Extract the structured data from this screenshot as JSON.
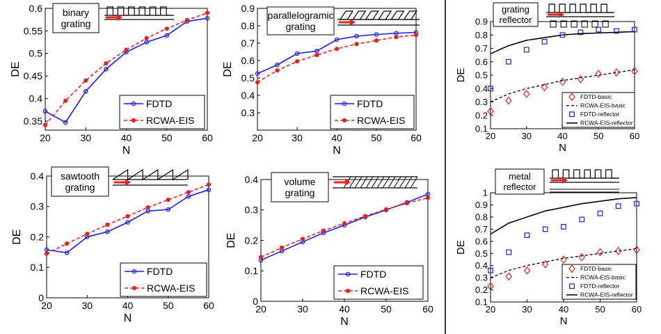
{
  "colors": {
    "fdtd": "#1a1aff",
    "rcwa": "#e8231f",
    "axis": "#000000",
    "schematic_arrow": "#e8231f"
  },
  "chart_data": [
    {
      "type": "line",
      "title": "binary\ngrating",
      "xlabel": "N",
      "ylabel": "DE",
      "xlim": [
        20,
        60
      ],
      "ylim": [
        0.33,
        0.6
      ],
      "xticks": [
        20,
        30,
        40,
        50,
        60
      ],
      "yticks": [
        0.35,
        0.4,
        0.45,
        0.5,
        0.55,
        0.6
      ],
      "ytick_labels": [
        "0.35",
        "0.4",
        "0.45",
        "0.5",
        "0.55",
        "0.6"
      ],
      "legend_position": "bottom-right",
      "schematic": "binary",
      "x": [
        20,
        25,
        30,
        35,
        40,
        45,
        50,
        55,
        60
      ],
      "series": [
        {
          "name": "FDTD",
          "style": "line-circle",
          "color": "#1a1aff",
          "values": [
            0.372,
            0.347,
            0.416,
            0.465,
            0.503,
            0.525,
            0.54,
            0.571,
            0.578
          ]
        },
        {
          "name": "RCWA-EIS",
          "style": "dashed-dot",
          "color": "#e8231f",
          "values": [
            0.341,
            0.395,
            0.44,
            0.478,
            0.508,
            0.534,
            0.555,
            0.574,
            0.59
          ]
        }
      ]
    },
    {
      "type": "line",
      "title": "parallelogramic\ngrating",
      "xlabel": "N",
      "ylabel": "DE",
      "xlim": [
        20,
        60
      ],
      "ylim": [
        0.2,
        0.9
      ],
      "xticks": [
        20,
        30,
        40,
        50,
        60
      ],
      "yticks": [
        0.3,
        0.4,
        0.5,
        0.6,
        0.7,
        0.8,
        0.9
      ],
      "ytick_labels": [
        "0.3",
        "0.4",
        "0.5",
        "0.6",
        "0.7",
        "0.8",
        "0.9"
      ],
      "legend_position": "bottom-right",
      "schematic": "parallelogram",
      "x": [
        20,
        25,
        30,
        35,
        40,
        45,
        50,
        55,
        60
      ],
      "series": [
        {
          "name": "FDTD",
          "style": "line-circle",
          "color": "#1a1aff",
          "values": [
            0.525,
            0.575,
            0.64,
            0.655,
            0.72,
            0.74,
            0.75,
            0.757,
            0.762
          ]
        },
        {
          "name": "RCWA-EIS",
          "style": "dashed-dot",
          "color": "#e8231f",
          "values": [
            0.475,
            0.543,
            0.595,
            0.632,
            0.667,
            0.695,
            0.715,
            0.735,
            0.747
          ]
        }
      ]
    },
    {
      "type": "line",
      "title": "sawtooth\ngrating",
      "xlabel": "N",
      "ylabel": "DE",
      "xlim": [
        20,
        60
      ],
      "ylim": [
        0,
        0.4
      ],
      "xticks": [
        20,
        30,
        40,
        50,
        60
      ],
      "yticks": [
        0,
        0.1,
        0.2,
        0.3,
        0.4
      ],
      "ytick_labels": [
        "0",
        "0.1",
        "0.2",
        "0.3",
        "0.4"
      ],
      "legend_position": "bottom-right",
      "schematic": "sawtooth",
      "x": [
        20,
        25,
        30,
        35,
        40,
        45,
        50,
        55,
        60
      ],
      "series": [
        {
          "name": "FDTD",
          "style": "line-circle",
          "color": "#1a1aff",
          "values": [
            0.158,
            0.148,
            0.2,
            0.217,
            0.248,
            0.285,
            0.29,
            0.333,
            0.355
          ]
        },
        {
          "name": "RCWA-EIS",
          "style": "dashed-dot",
          "color": "#e8231f",
          "values": [
            0.145,
            0.178,
            0.21,
            0.24,
            0.268,
            0.297,
            0.322,
            0.347,
            0.372
          ]
        }
      ]
    },
    {
      "type": "line",
      "title": "volume\ngrating",
      "xlabel": "N",
      "ylabel": "DE",
      "xlim": [
        20,
        60
      ],
      "ylim": [
        0,
        0.4
      ],
      "xticks": [
        20,
        30,
        40,
        50,
        60
      ],
      "yticks": [
        0,
        0.1,
        0.2,
        0.3,
        0.4
      ],
      "ytick_labels": [
        "0",
        "0.1",
        "0.2",
        "0.3",
        "0.4"
      ],
      "legend_position": "bottom-right",
      "schematic": "volume",
      "x": [
        20,
        25,
        30,
        35,
        40,
        45,
        50,
        55,
        60
      ],
      "series": [
        {
          "name": "FDTD",
          "style": "line-circle",
          "color": "#1a1aff",
          "values": [
            0.135,
            0.165,
            0.195,
            0.225,
            0.25,
            0.277,
            0.3,
            0.325,
            0.352
          ]
        },
        {
          "name": "RCWA-EIS",
          "style": "dashed-dot",
          "color": "#e8231f",
          "values": [
            0.145,
            0.176,
            0.205,
            0.232,
            0.256,
            0.28,
            0.302,
            0.322,
            0.34
          ]
        }
      ]
    },
    {
      "type": "scatter",
      "title": "grating\nreflector",
      "xlabel": "N",
      "ylabel": "DE",
      "xlim": [
        20,
        60
      ],
      "ylim": [
        0.1,
        0.9
      ],
      "xticks": [
        20,
        30,
        40,
        50,
        60
      ],
      "yticks": [
        0.1,
        0.2,
        0.3,
        0.4,
        0.5,
        0.6,
        0.7,
        0.8,
        0.9
      ],
      "ytick_labels": [
        "0.1",
        "0.2",
        "0.3",
        "0.4",
        "0.5",
        "0.6",
        "0.7",
        "0.8",
        "0.9"
      ],
      "legend_position": "bottom-right",
      "schematic": "binary-reflector",
      "x": [
        20,
        25,
        30,
        35,
        40,
        45,
        50,
        55,
        60
      ],
      "series": [
        {
          "name": "FDTD-basic",
          "style": "diamond",
          "color": "#e8231f",
          "values": [
            0.23,
            0.31,
            0.36,
            0.41,
            0.45,
            0.47,
            0.51,
            0.52,
            0.53
          ]
        },
        {
          "name": "RCWA-EIS-basic",
          "style": "dashed",
          "color": "#000000",
          "values": [
            0.3,
            0.36,
            0.4,
            0.43,
            0.46,
            0.48,
            0.5,
            0.52,
            0.54
          ]
        },
        {
          "name": "FDTD-reflector",
          "style": "square",
          "color": "#1a1aff",
          "values": [
            0.4,
            0.6,
            0.69,
            0.75,
            0.8,
            0.82,
            0.84,
            0.83,
            0.84
          ]
        },
        {
          "name": "RCWA-EIS-reflector",
          "style": "solid",
          "color": "#000000",
          "values": [
            0.66,
            0.72,
            0.76,
            0.78,
            0.8,
            0.81,
            0.815,
            0.82,
            0.825
          ]
        }
      ]
    },
    {
      "type": "scatter",
      "title": "metal\nreflector",
      "xlabel": "N",
      "ylabel": "DE",
      "xlim": [
        20,
        60
      ],
      "ylim": [
        0.1,
        1.0
      ],
      "xticks": [
        20,
        30,
        40,
        50,
        60
      ],
      "yticks": [
        0.1,
        0.2,
        0.3,
        0.4,
        0.5,
        0.6,
        0.7,
        0.8,
        0.9,
        1.0
      ],
      "ytick_labels": [
        "0.1",
        "0.2",
        "0.3",
        "0.4",
        "0.5",
        "0.6",
        "0.7",
        "0.8",
        "0.9",
        "1"
      ],
      "legend_position": "bottom-right",
      "schematic": "metal-reflector",
      "x": [
        20,
        25,
        30,
        35,
        40,
        45,
        50,
        55,
        60
      ],
      "series": [
        {
          "name": "FDTD-basic",
          "style": "diamond",
          "color": "#e8231f",
          "values": [
            0.23,
            0.31,
            0.36,
            0.41,
            0.45,
            0.47,
            0.51,
            0.52,
            0.53
          ]
        },
        {
          "name": "RCWA-EIS-basic",
          "style": "dashed",
          "color": "#000000",
          "values": [
            0.3,
            0.36,
            0.4,
            0.43,
            0.46,
            0.48,
            0.5,
            0.52,
            0.54
          ]
        },
        {
          "name": "FDTD-reflector",
          "style": "square",
          "color": "#1a1aff",
          "values": [
            0.36,
            0.51,
            0.65,
            0.7,
            0.72,
            0.78,
            0.83,
            0.89,
            0.91
          ]
        },
        {
          "name": "RCWA-EIS-reflector",
          "style": "solid",
          "color": "#000000",
          "values": [
            0.66,
            0.75,
            0.8,
            0.85,
            0.88,
            0.91,
            0.93,
            0.95,
            0.96
          ]
        }
      ]
    }
  ]
}
